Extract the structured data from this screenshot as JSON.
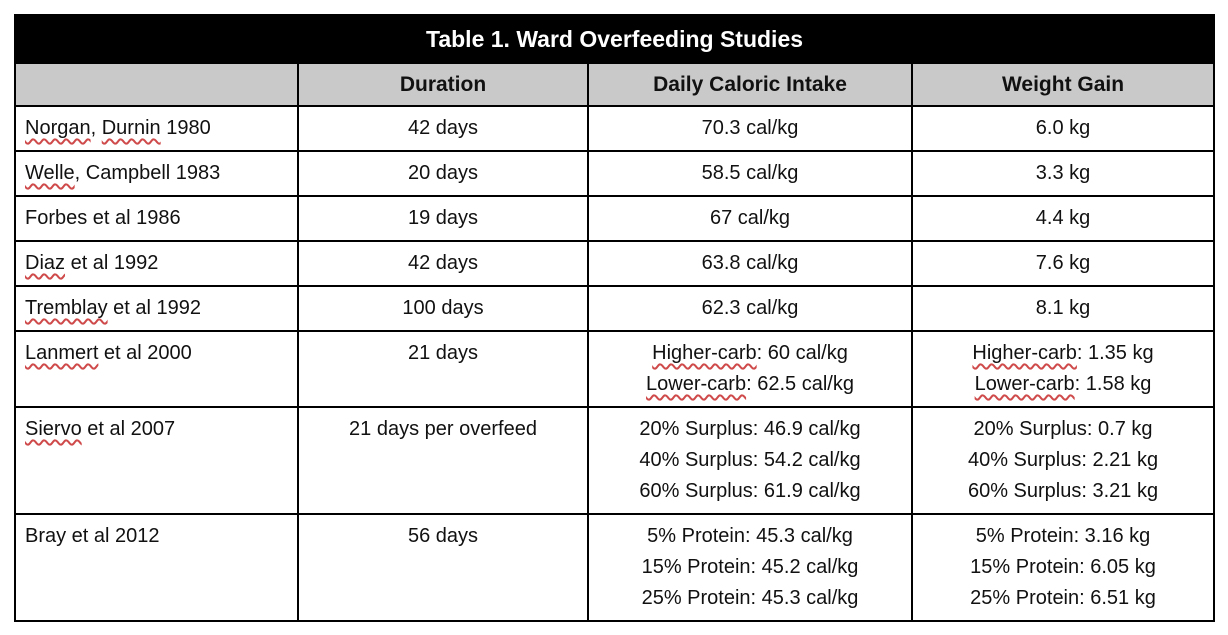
{
  "table": {
    "title": "Table 1. Ward Overfeeding Studies",
    "headers": [
      "",
      "Duration",
      "Daily Caloric Intake",
      "Weight Gain"
    ],
    "rows": [
      {
        "study": [
          [
            {
              "t": "Norgan",
              "m": true
            },
            {
              "t": ", ",
              "m": false
            },
            {
              "t": "Durnin",
              "m": true
            },
            {
              "t": " 1980",
              "m": false
            }
          ]
        ],
        "duration": [
          [
            {
              "t": "42 days",
              "m": false
            }
          ]
        ],
        "intake": [
          [
            {
              "t": "70.3 cal/kg",
              "m": false
            }
          ]
        ],
        "gain": [
          [
            {
              "t": "6.0 kg",
              "m": false
            }
          ]
        ]
      },
      {
        "study": [
          [
            {
              "t": "Welle",
              "m": true
            },
            {
              "t": ", Campbell 1983",
              "m": false
            }
          ]
        ],
        "duration": [
          [
            {
              "t": "20 days",
              "m": false
            }
          ]
        ],
        "intake": [
          [
            {
              "t": "58.5 cal/kg",
              "m": false
            }
          ]
        ],
        "gain": [
          [
            {
              "t": "3.3 kg",
              "m": false
            }
          ]
        ]
      },
      {
        "study": [
          [
            {
              "t": "Forbes et al 1986",
              "m": false
            }
          ]
        ],
        "duration": [
          [
            {
              "t": "19 days",
              "m": false
            }
          ]
        ],
        "intake": [
          [
            {
              "t": "67 cal/kg",
              "m": false
            }
          ]
        ],
        "gain": [
          [
            {
              "t": "4.4 kg",
              "m": false
            }
          ]
        ]
      },
      {
        "study": [
          [
            {
              "t": "Diaz",
              "m": true
            },
            {
              "t": " et al 1992",
              "m": false
            }
          ]
        ],
        "duration": [
          [
            {
              "t": "42 days",
              "m": false
            }
          ]
        ],
        "intake": [
          [
            {
              "t": "63.8 cal/kg",
              "m": false
            }
          ]
        ],
        "gain": [
          [
            {
              "t": "7.6 kg",
              "m": false
            }
          ]
        ]
      },
      {
        "study": [
          [
            {
              "t": "Tremblay",
              "m": true
            },
            {
              "t": " et al 1992",
              "m": false
            }
          ]
        ],
        "duration": [
          [
            {
              "t": "100 days",
              "m": false
            }
          ]
        ],
        "intake": [
          [
            {
              "t": "62.3 cal/kg",
              "m": false
            }
          ]
        ],
        "gain": [
          [
            {
              "t": "8.1 kg",
              "m": false
            }
          ]
        ]
      },
      {
        "study": [
          [
            {
              "t": "Lanmert",
              "m": true
            },
            {
              "t": " et al 2000",
              "m": false
            }
          ]
        ],
        "duration": [
          [
            {
              "t": "21 days",
              "m": false
            }
          ]
        ],
        "intake": [
          [
            {
              "t": "Higher-carb",
              "m": true
            },
            {
              "t": ": 60 cal/kg",
              "m": false
            }
          ],
          [
            {
              "t": "Lower-carb",
              "m": true
            },
            {
              "t": ": 62.5 cal/kg",
              "m": false
            }
          ]
        ],
        "gain": [
          [
            {
              "t": "Higher-carb",
              "m": true
            },
            {
              "t": ": 1.35 kg",
              "m": false
            }
          ],
          [
            {
              "t": "Lower-carb",
              "m": true
            },
            {
              "t": ": 1.58 kg",
              "m": false
            }
          ]
        ]
      },
      {
        "study": [
          [
            {
              "t": "Siervo",
              "m": true
            },
            {
              "t": " et al 2007",
              "m": false
            }
          ]
        ],
        "duration": [
          [
            {
              "t": "21 days per overfeed",
              "m": false
            }
          ]
        ],
        "intake": [
          [
            {
              "t": "20% Surplus: 46.9 cal/kg",
              "m": false
            }
          ],
          [
            {
              "t": "40% Surplus: 54.2 cal/kg",
              "m": false
            }
          ],
          [
            {
              "t": "60% Surplus: 61.9 cal/kg",
              "m": false
            }
          ]
        ],
        "gain": [
          [
            {
              "t": "20% Surplus: 0.7 kg",
              "m": false
            }
          ],
          [
            {
              "t": "40% Surplus: 2.21 kg",
              "m": false
            }
          ],
          [
            {
              "t": "60% Surplus: 3.21 kg",
              "m": false
            }
          ]
        ]
      },
      {
        "study": [
          [
            {
              "t": "Bray et al 2012",
              "m": false
            }
          ]
        ],
        "duration": [
          [
            {
              "t": "56 days",
              "m": false
            }
          ]
        ],
        "intake": [
          [
            {
              "t": "5% Protein: 45.3 cal/kg",
              "m": false
            }
          ],
          [
            {
              "t": "15% Protein: 45.2 cal/kg",
              "m": false
            }
          ],
          [
            {
              "t": "25% Protein: 45.3 cal/kg",
              "m": false
            }
          ]
        ],
        "gain": [
          [
            {
              "t": "5% Protein: 3.16 kg",
              "m": false
            }
          ],
          [
            {
              "t": "15% Protein: 6.05 kg",
              "m": false
            }
          ],
          [
            {
              "t": "25% Protein: 6.51 kg",
              "m": false
            }
          ]
        ]
      }
    ]
  },
  "colors": {
    "title_bg": "#000000",
    "title_text": "#ffffff",
    "header_bg": "#c9c9c9",
    "border": "#000000",
    "squiggle": "#cf4a4a"
  }
}
